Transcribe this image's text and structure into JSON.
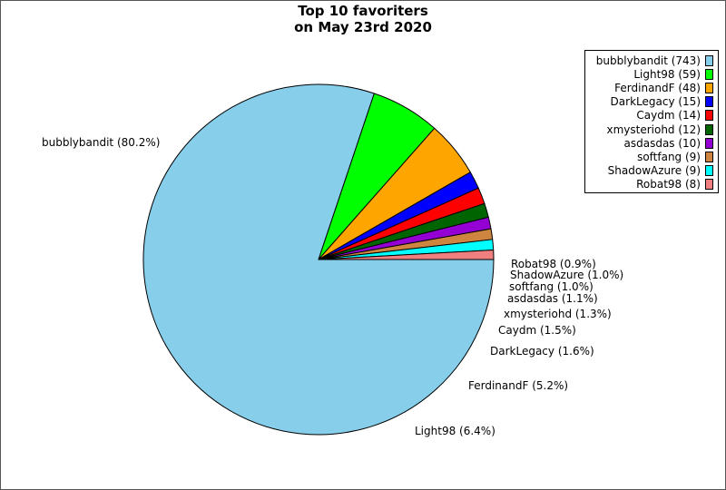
{
  "chart_data": {
    "type": "pie",
    "title_lines": [
      "Top 10 favoriters",
      "on May 23rd 2020"
    ],
    "slices": [
      {
        "name": "bubblybandit",
        "value": 743,
        "percent_label": "80.2%",
        "color": "#87ceeb"
      },
      {
        "name": "Light98",
        "value": 59,
        "percent_label": "6.4%",
        "color": "#00ff00"
      },
      {
        "name": "FerdinandF",
        "value": 48,
        "percent_label": "5.2%",
        "color": "#ffa500"
      },
      {
        "name": "DarkLegacy",
        "value": 15,
        "percent_label": "1.6%",
        "color": "#0000ff"
      },
      {
        "name": "Caydm",
        "value": 14,
        "percent_label": "1.5%",
        "color": "#ff0000"
      },
      {
        "name": "xmysteriohd",
        "value": 12,
        "percent_label": "1.3%",
        "color": "#006400"
      },
      {
        "name": "asdasdas",
        "value": 10,
        "percent_label": "1.1%",
        "color": "#9400d3"
      },
      {
        "name": "softfang",
        "value": 9,
        "percent_label": "1.0%",
        "color": "#cd853f"
      },
      {
        "name": "ShadowAzure",
        "value": 9,
        "percent_label": "1.0%",
        "color": "#00ffff"
      },
      {
        "name": "Robat98",
        "value": 8,
        "percent_label": "0.9%",
        "color": "#f08080"
      }
    ],
    "legend": {
      "placement": "top-right",
      "entries": [
        "bubblybandit (743)",
        "Light98 (59)",
        "FerdinandF (48)",
        "DarkLegacy (15)",
        "Caydm (14)",
        "xmysteriohd (12)",
        "asdasdas (10)",
        "softfang (9)",
        "ShadowAzure (9)",
        "Robat98 (8)"
      ]
    },
    "slice_labels": [
      "bubblybandit (80.2%)",
      "Light98 (6.4%)",
      "FerdinandF (5.2%)",
      "DarkLegacy (1.6%)",
      "Caydm (1.5%)",
      "xmysteriohd (1.3%)",
      "asdasdas (1.1%)",
      "softfang (1.0%)",
      "ShadowAzure (1.0%)",
      "Robat98 (0.9%)"
    ],
    "start_angle": "3 o'clock",
    "direction": "clockwise"
  }
}
